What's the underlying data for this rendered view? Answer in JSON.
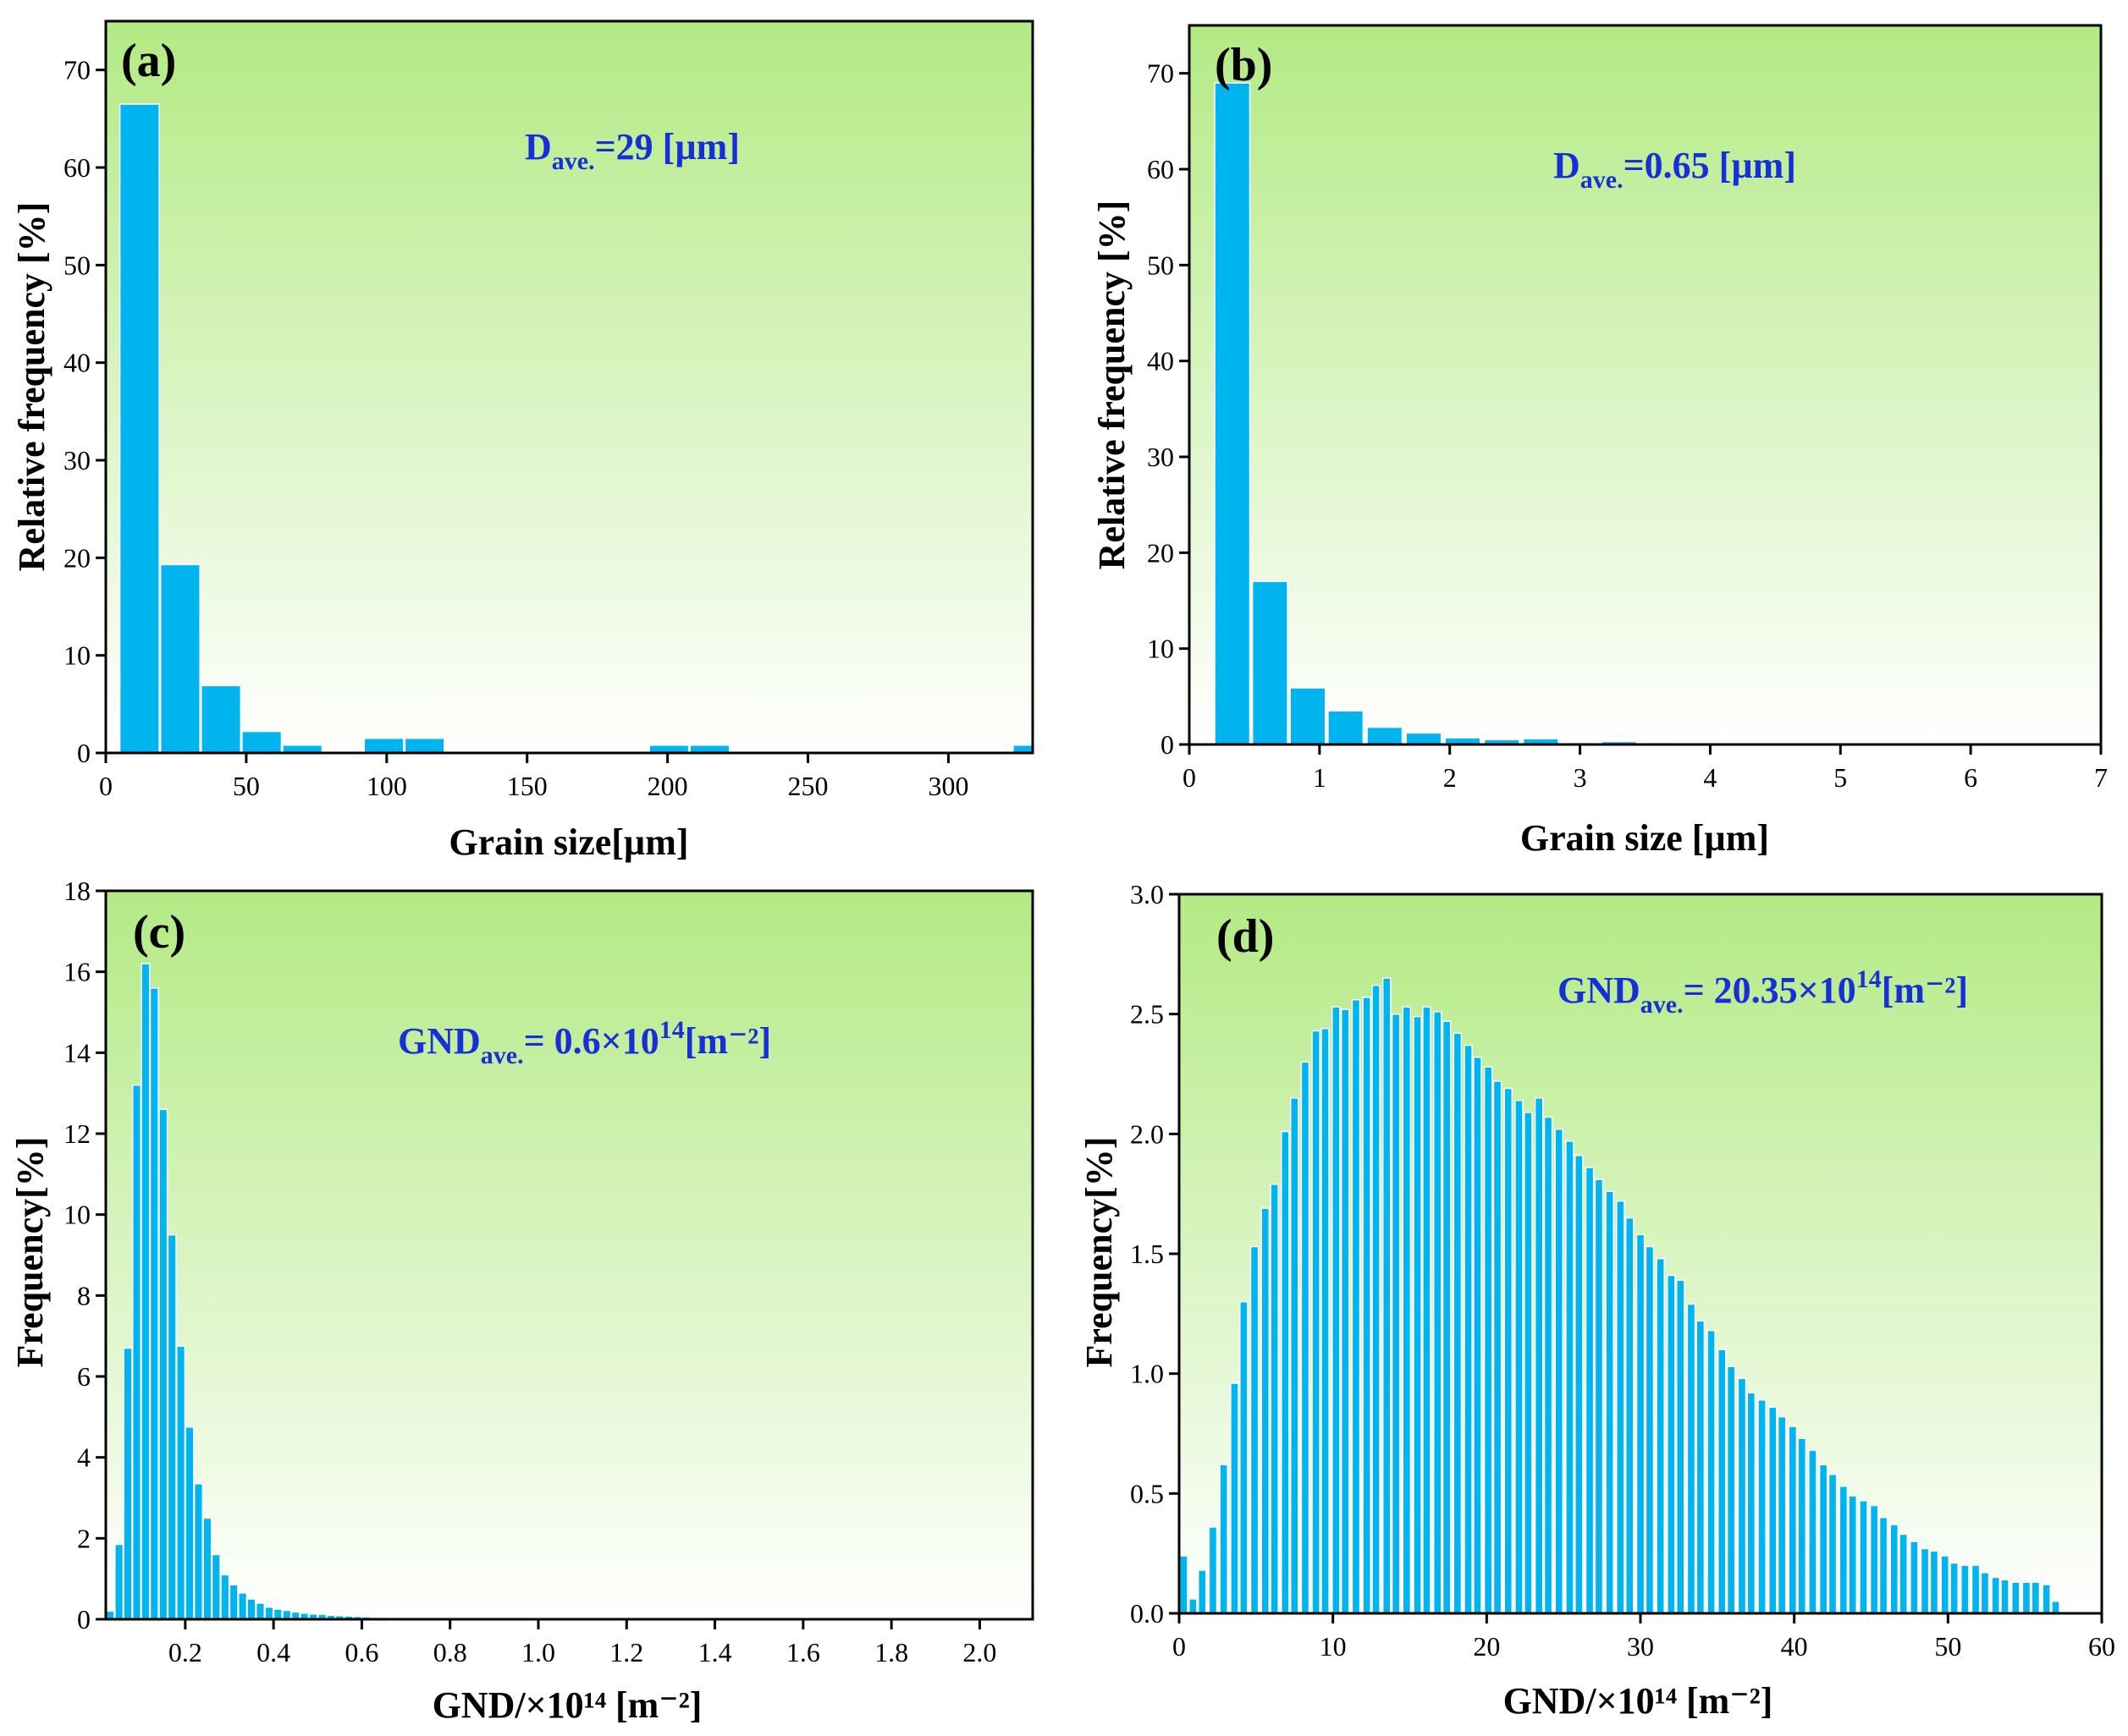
{
  "colors": {
    "bar": "#00b4f0",
    "bar_edge": "#ffffff",
    "bg_top": "#b3ea84",
    "bg_bottom": "#ffffff",
    "annotation": "#1530d8",
    "axis": "#000000"
  },
  "chart_data": [
    {
      "id": "a",
      "type": "bar",
      "panel_label": "(a)",
      "xlabel": "Grain size[µm]",
      "ylabel": "Relative frequency [%]",
      "xlim": [
        0,
        330
      ],
      "ylim": [
        0,
        75
      ],
      "xticks": [
        0,
        50,
        100,
        150,
        200,
        250,
        300
      ],
      "xtick_labels": [
        "0",
        "50",
        "100",
        "150",
        "200",
        "250",
        "300"
      ],
      "yticks": [
        0,
        10,
        20,
        30,
        40,
        50,
        60,
        70
      ],
      "ytick_labels": [
        "0",
        "10",
        "20",
        "30",
        "40",
        "50",
        "60",
        "70"
      ],
      "bin_width": 14,
      "bins": [
        {
          "x": 12,
          "y": 66.5
        },
        {
          "x": 26.5,
          "y": 19.3
        },
        {
          "x": 41,
          "y": 6.9
        },
        {
          "x": 55.5,
          "y": 2.2
        },
        {
          "x": 70,
          "y": 0.8
        },
        {
          "x": 99,
          "y": 1.5
        },
        {
          "x": 113.5,
          "y": 1.5
        },
        {
          "x": 200.5,
          "y": 0.8
        },
        {
          "x": 215,
          "y": 0.8
        },
        {
          "x": 330,
          "y": 0.8
        }
      ],
      "annotation": {
        "main": "D",
        "sub": "ave.",
        "rest": "=29 [µm]",
        "sup": "",
        "tail": ""
      }
    },
    {
      "id": "b",
      "type": "bar",
      "panel_label": "(b)",
      "xlabel": "Grain size [µm]",
      "ylabel": "Relative frequency [%]",
      "xlim": [
        0,
        7
      ],
      "ylim": [
        0,
        75
      ],
      "xticks": [
        0,
        1,
        2,
        3,
        4,
        5,
        6,
        7
      ],
      "xtick_labels": [
        "0",
        "1",
        "2",
        "3",
        "4",
        "5",
        "6",
        "7"
      ],
      "yticks": [
        0,
        10,
        20,
        30,
        40,
        50,
        60,
        70
      ],
      "ytick_labels": [
        "0",
        "10",
        "20",
        "30",
        "40",
        "50",
        "60",
        "70"
      ],
      "bin_width": 0.27,
      "bins": [
        {
          "x": 0.33,
          "y": 69
        },
        {
          "x": 0.62,
          "y": 17
        },
        {
          "x": 0.91,
          "y": 5.9
        },
        {
          "x": 1.2,
          "y": 3.5
        },
        {
          "x": 1.5,
          "y": 1.8
        },
        {
          "x": 1.8,
          "y": 1.2
        },
        {
          "x": 2.1,
          "y": 0.7
        },
        {
          "x": 2.4,
          "y": 0.5
        },
        {
          "x": 2.7,
          "y": 0.6
        },
        {
          "x": 3.0,
          "y": 0.2
        },
        {
          "x": 3.3,
          "y": 0.3
        },
        {
          "x": 3.6,
          "y": 0.2
        }
      ],
      "annotation": {
        "main": "D",
        "sub": "ave.",
        "rest": "=0.65 [µm]",
        "sup": "",
        "tail": ""
      }
    },
    {
      "id": "c",
      "type": "bar",
      "panel_label": "(c)",
      "xlabel": "GND/×10¹⁴ [m⁻²]",
      "ylabel": "Frequency[%]",
      "xlim": [
        0.02,
        2.12
      ],
      "ylim": [
        0,
        18
      ],
      "xticks": [
        0.2,
        0.4,
        0.6,
        0.8,
        1.0,
        1.2,
        1.4,
        1.6,
        1.8,
        2.0
      ],
      "xtick_labels": [
        "0.2",
        "0.4",
        "0.6",
        "0.8",
        "1.0",
        "1.2",
        "1.4",
        "1.6",
        "1.8",
        "2.0"
      ],
      "yticks": [
        0,
        2,
        4,
        6,
        8,
        10,
        12,
        14,
        16,
        18
      ],
      "ytick_labels": [
        "0",
        "2",
        "4",
        "6",
        "8",
        "10",
        "12",
        "14",
        "16",
        "18"
      ],
      "bin_width": 0.0185,
      "bins": [
        {
          "x": 0.03,
          "y": 0.2
        },
        {
          "x": 0.05,
          "y": 1.85
        },
        {
          "x": 0.07,
          "y": 6.7
        },
        {
          "x": 0.09,
          "y": 13.2
        },
        {
          "x": 0.11,
          "y": 16.2
        },
        {
          "x": 0.13,
          "y": 15.6
        },
        {
          "x": 0.15,
          "y": 12.6
        },
        {
          "x": 0.17,
          "y": 9.5
        },
        {
          "x": 0.19,
          "y": 6.75
        },
        {
          "x": 0.21,
          "y": 4.75
        },
        {
          "x": 0.23,
          "y": 3.35
        },
        {
          "x": 0.25,
          "y": 2.5
        },
        {
          "x": 0.27,
          "y": 1.6
        },
        {
          "x": 0.29,
          "y": 1.1
        },
        {
          "x": 0.31,
          "y": 0.85
        },
        {
          "x": 0.33,
          "y": 0.65
        },
        {
          "x": 0.35,
          "y": 0.5
        },
        {
          "x": 0.37,
          "y": 0.4
        },
        {
          "x": 0.39,
          "y": 0.3
        },
        {
          "x": 0.41,
          "y": 0.25
        },
        {
          "x": 0.43,
          "y": 0.22
        },
        {
          "x": 0.45,
          "y": 0.18
        },
        {
          "x": 0.47,
          "y": 0.15
        },
        {
          "x": 0.49,
          "y": 0.13
        },
        {
          "x": 0.51,
          "y": 0.12
        },
        {
          "x": 0.53,
          "y": 0.1
        },
        {
          "x": 0.55,
          "y": 0.09
        },
        {
          "x": 0.57,
          "y": 0.08
        },
        {
          "x": 0.59,
          "y": 0.07
        },
        {
          "x": 0.61,
          "y": 0.06
        },
        {
          "x": 0.63,
          "y": 0.05
        },
        {
          "x": 0.65,
          "y": 0.05
        },
        {
          "x": 0.67,
          "y": 0.04
        },
        {
          "x": 0.69,
          "y": 0.04
        },
        {
          "x": 0.71,
          "y": 0.03
        },
        {
          "x": 0.73,
          "y": 0.03
        },
        {
          "x": 0.75,
          "y": 0.03
        },
        {
          "x": 0.77,
          "y": 0.02
        }
      ],
      "annotation": {
        "main": "GND",
        "sub": "ave.",
        "rest": "= 0.6×10",
        "sup": "14",
        "tail": "[m⁻²]"
      }
    },
    {
      "id": "d",
      "type": "bar",
      "panel_label": "(d)",
      "xlabel": "GND/×10¹⁴ [m⁻²]",
      "ylabel": "Frequency[%]",
      "xlim": [
        0,
        60
      ],
      "ylim": [
        0,
        3.0
      ],
      "xticks": [
        0,
        10,
        20,
        30,
        40,
        50,
        60
      ],
      "xtick_labels": [
        "0",
        "10",
        "20",
        "30",
        "40",
        "50",
        "60"
      ],
      "yticks": [
        0,
        0.5,
        1.0,
        1.5,
        2.0,
        2.5,
        3.0
      ],
      "ytick_labels": [
        "0.0",
        "0.5",
        "1.0",
        "1.5",
        "2.0",
        "2.5",
        "3.0"
      ],
      "bin_width": 0.5,
      "bins": [
        {
          "x": 0.3,
          "y": 0.24
        },
        {
          "x": 0.9,
          "y": 0.06
        },
        {
          "x": 1.5,
          "y": 0.18
        },
        {
          "x": 2.2,
          "y": 0.36
        },
        {
          "x": 2.9,
          "y": 0.62
        },
        {
          "x": 3.6,
          "y": 0.96
        },
        {
          "x": 4.2,
          "y": 1.3
        },
        {
          "x": 4.9,
          "y": 1.53
        },
        {
          "x": 5.6,
          "y": 1.69
        },
        {
          "x": 6.2,
          "y": 1.79
        },
        {
          "x": 6.9,
          "y": 2.01
        },
        {
          "x": 7.5,
          "y": 2.15
        },
        {
          "x": 8.2,
          "y": 2.3
        },
        {
          "x": 8.9,
          "y": 2.43
        },
        {
          "x": 9.5,
          "y": 2.44
        },
        {
          "x": 10.2,
          "y": 2.53
        },
        {
          "x": 10.8,
          "y": 2.52
        },
        {
          "x": 11.5,
          "y": 2.56
        },
        {
          "x": 12.2,
          "y": 2.57
        },
        {
          "x": 12.8,
          "y": 2.62
        },
        {
          "x": 13.5,
          "y": 2.65
        },
        {
          "x": 14.1,
          "y": 2.5
        },
        {
          "x": 14.8,
          "y": 2.53
        },
        {
          "x": 15.5,
          "y": 2.49
        },
        {
          "x": 16.1,
          "y": 2.53
        },
        {
          "x": 16.8,
          "y": 2.51
        },
        {
          "x": 17.4,
          "y": 2.47
        },
        {
          "x": 18.1,
          "y": 2.42
        },
        {
          "x": 18.8,
          "y": 2.37
        },
        {
          "x": 19.4,
          "y": 2.32
        },
        {
          "x": 20.1,
          "y": 2.28
        },
        {
          "x": 20.7,
          "y": 2.22
        },
        {
          "x": 21.4,
          "y": 2.19
        },
        {
          "x": 22.1,
          "y": 2.14
        },
        {
          "x": 22.7,
          "y": 2.09
        },
        {
          "x": 23.4,
          "y": 2.15
        },
        {
          "x": 24.0,
          "y": 2.07
        },
        {
          "x": 24.7,
          "y": 2.02
        },
        {
          "x": 25.4,
          "y": 1.97
        },
        {
          "x": 26.0,
          "y": 1.91
        },
        {
          "x": 26.7,
          "y": 1.86
        },
        {
          "x": 27.3,
          "y": 1.81
        },
        {
          "x": 28.0,
          "y": 1.76
        },
        {
          "x": 28.7,
          "y": 1.72
        },
        {
          "x": 29.3,
          "y": 1.65
        },
        {
          "x": 30.0,
          "y": 1.58
        },
        {
          "x": 30.6,
          "y": 1.53
        },
        {
          "x": 31.3,
          "y": 1.48
        },
        {
          "x": 32.0,
          "y": 1.41
        },
        {
          "x": 32.6,
          "y": 1.39
        },
        {
          "x": 33.3,
          "y": 1.29
        },
        {
          "x": 33.9,
          "y": 1.22
        },
        {
          "x": 34.6,
          "y": 1.18
        },
        {
          "x": 35.3,
          "y": 1.1
        },
        {
          "x": 35.9,
          "y": 1.03
        },
        {
          "x": 36.6,
          "y": 0.98
        },
        {
          "x": 37.2,
          "y": 0.92
        },
        {
          "x": 37.9,
          "y": 0.89
        },
        {
          "x": 38.6,
          "y": 0.86
        },
        {
          "x": 39.2,
          "y": 0.82
        },
        {
          "x": 39.9,
          "y": 0.78
        },
        {
          "x": 40.5,
          "y": 0.73
        },
        {
          "x": 41.2,
          "y": 0.68
        },
        {
          "x": 41.9,
          "y": 0.62
        },
        {
          "x": 42.5,
          "y": 0.58
        },
        {
          "x": 43.2,
          "y": 0.53
        },
        {
          "x": 43.8,
          "y": 0.49
        },
        {
          "x": 44.5,
          "y": 0.47
        },
        {
          "x": 45.2,
          "y": 0.45
        },
        {
          "x": 45.8,
          "y": 0.4
        },
        {
          "x": 46.5,
          "y": 0.37
        },
        {
          "x": 47.1,
          "y": 0.33
        },
        {
          "x": 47.8,
          "y": 0.3
        },
        {
          "x": 48.5,
          "y": 0.27
        },
        {
          "x": 49.1,
          "y": 0.26
        },
        {
          "x": 49.8,
          "y": 0.24
        },
        {
          "x": 50.4,
          "y": 0.21
        },
        {
          "x": 51.1,
          "y": 0.2
        },
        {
          "x": 51.8,
          "y": 0.2
        },
        {
          "x": 52.4,
          "y": 0.17
        },
        {
          "x": 53.1,
          "y": 0.15
        },
        {
          "x": 53.7,
          "y": 0.14
        },
        {
          "x": 54.4,
          "y": 0.13
        },
        {
          "x": 55.1,
          "y": 0.13
        },
        {
          "x": 55.7,
          "y": 0.13
        },
        {
          "x": 56.4,
          "y": 0.12
        },
        {
          "x": 57.0,
          "y": 0.05
        }
      ],
      "annotation": {
        "main": "GND",
        "sub": "ave.",
        "rest": "= 20.35×10",
        "sup": "14",
        "tail": "[m⁻²]"
      }
    }
  ]
}
